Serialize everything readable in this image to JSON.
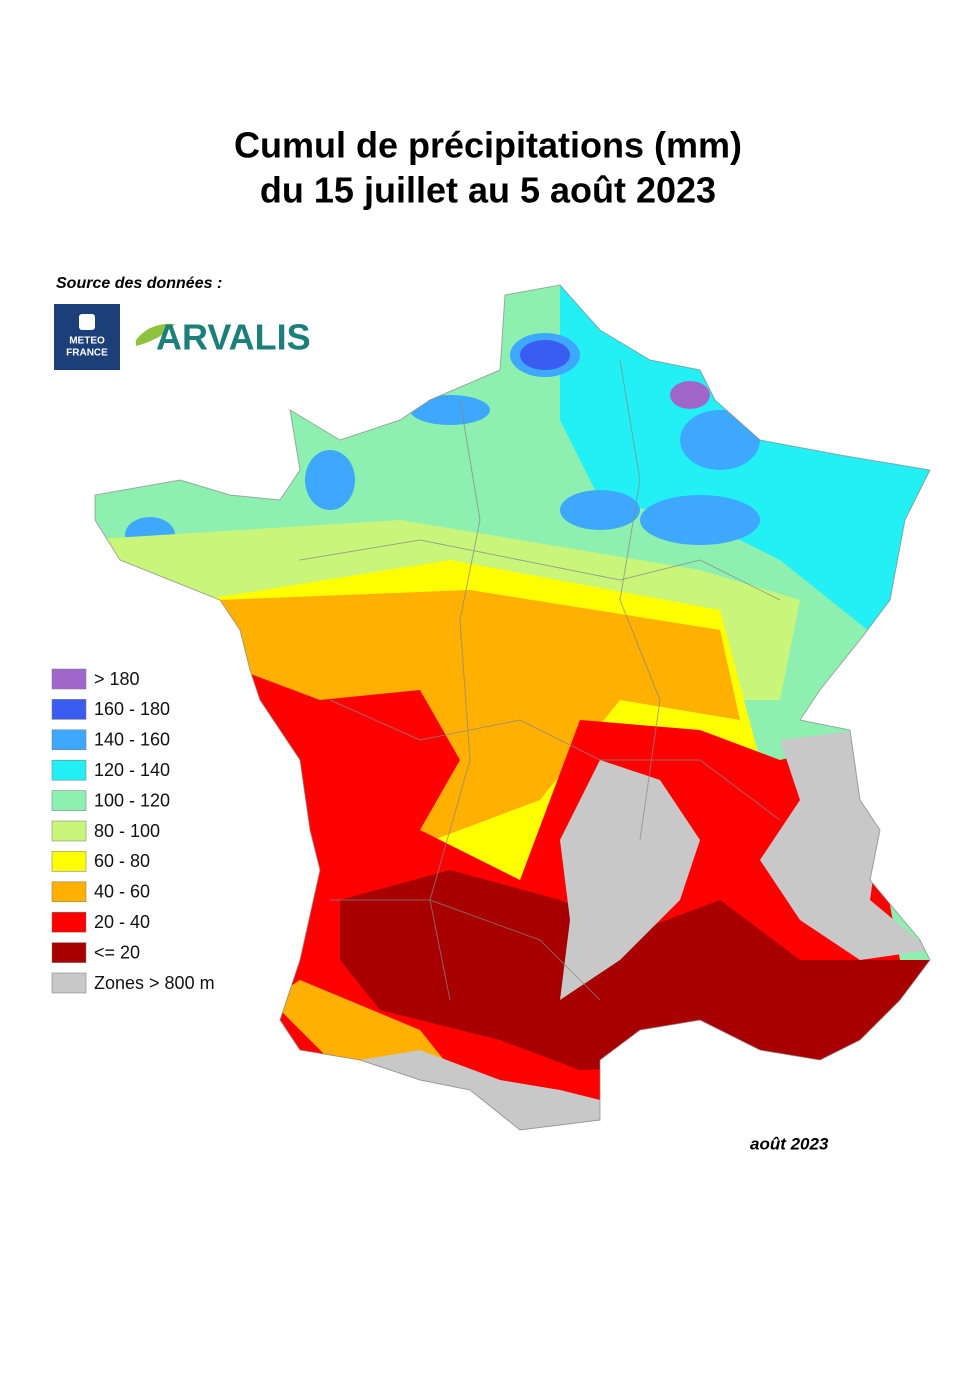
{
  "title": [
    "Cumul de précipitations (mm)",
    "du 15 juillet au 5 août 2023"
  ],
  "source_label": "Source des données :",
  "logos": {
    "meteo_france": [
      "METEO",
      "FRANCE"
    ],
    "arvalis": "ARVALIS"
  },
  "legend": [
    {
      "label": "> 180",
      "color": "#a066cc"
    },
    {
      "label": "160 - 180",
      "color": "#3a5cf0"
    },
    {
      "label": "140 - 160",
      "color": "#3ea8ff"
    },
    {
      "label": "120 - 140",
      "color": "#22f0f5"
    },
    {
      "label": "100 - 120",
      "color": "#8ef0b0"
    },
    {
      "label": "80 - 100",
      "color": "#c8f57a"
    },
    {
      "label": "60 - 80",
      "color": "#ffff00"
    },
    {
      "label": "40 - 60",
      "color": "#ffb000"
    },
    {
      "label": "20 - 40",
      "color": "#ff0000"
    },
    {
      "label": "<= 20",
      "color": "#a80000"
    },
    {
      "label": "Zones > 800 m",
      "color": "#c8c8c8"
    }
  ],
  "date": "août 2023"
}
